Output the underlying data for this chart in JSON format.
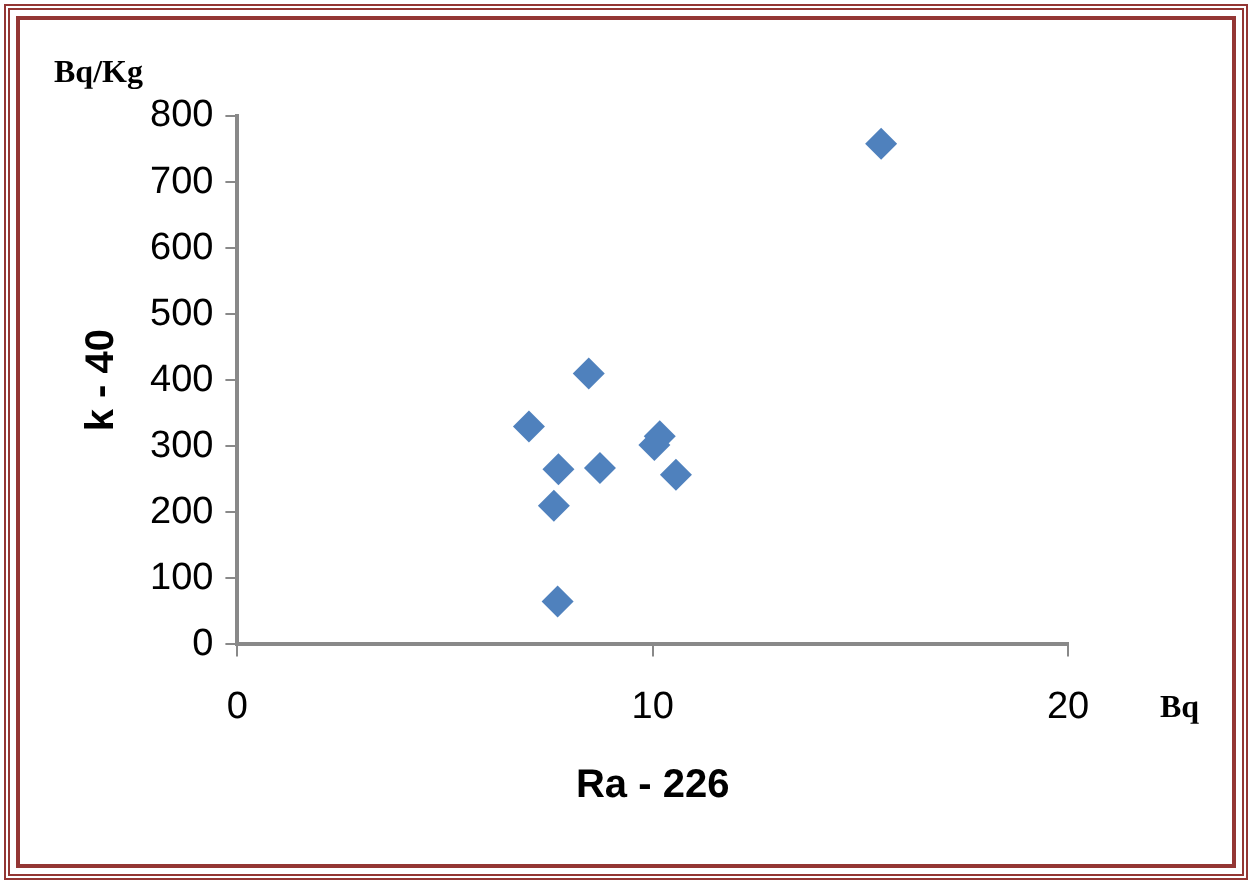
{
  "chart_data": {
    "type": "scatter",
    "xlabel": "Ra - 226",
    "ylabel": "k - 40",
    "annotations": [
      "Bq/Kg",
      "Bq"
    ],
    "x": [
      15.5,
      8.46,
      7.02,
      10.17,
      10.04,
      7.73,
      8.73,
      10.56,
      7.62,
      7.71
    ],
    "series": [
      {
        "color": "#4f81bd",
        "values": [
          758,
          410,
          330,
          315,
          302,
          265,
          267,
          257,
          210,
          65
        ]
      }
    ],
    "xlim": [
      0,
      20
    ],
    "xticks": [
      0,
      10,
      20
    ],
    "ylim": [
      0,
      800
    ],
    "yticks": [
      0,
      100,
      200,
      300,
      400,
      500,
      600,
      700,
      800
    ],
    "grid": false,
    "legend": false,
    "marker": "diamond"
  }
}
